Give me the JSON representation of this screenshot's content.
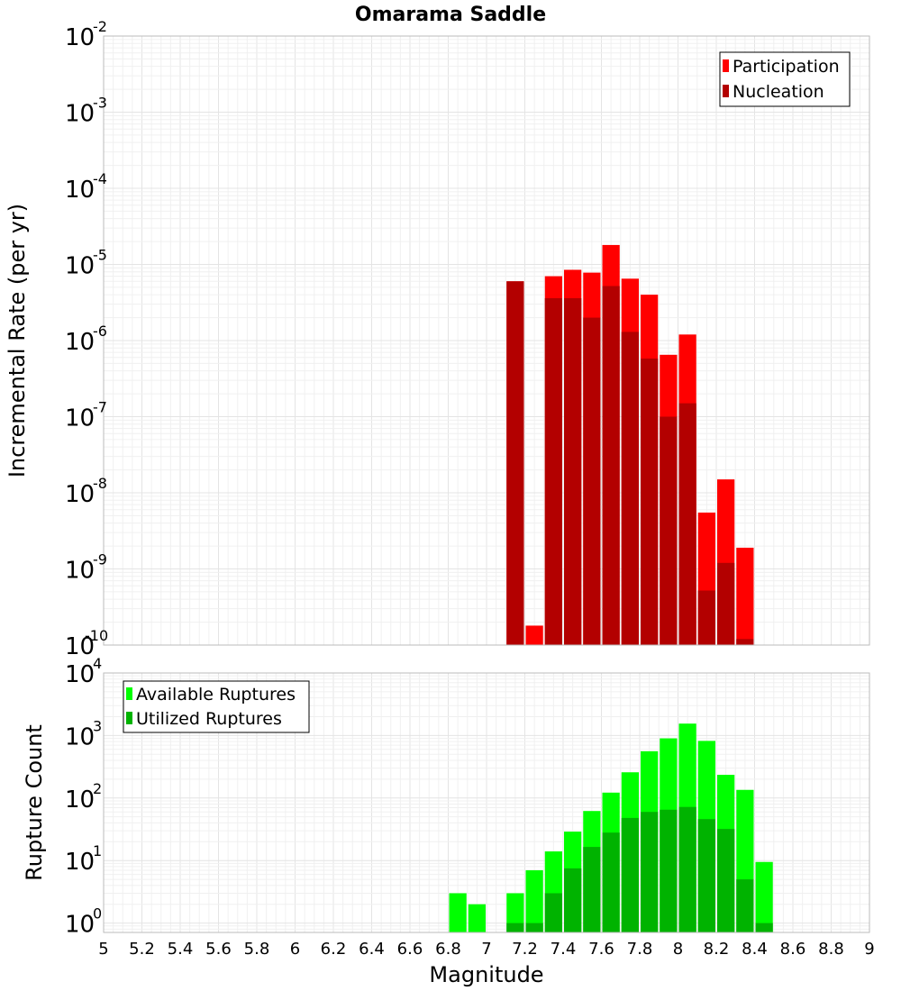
{
  "title": "Omarama Saddle",
  "colors": {
    "participation": "#ff0000",
    "nucleation": "#b30000",
    "available": "#00ff00",
    "utilized": "#00b300",
    "grid_major": "#e4e4e4",
    "grid_minor": "#f0f0f0",
    "frame": "#bbbbbb"
  },
  "chart_data": [
    {
      "type": "bar",
      "title": "Omarama Saddle",
      "xlabel": "Magnitude",
      "ylabel": "Incremental Rate (per yr)",
      "yscale": "log",
      "xlim": [
        5,
        9
      ],
      "ylim_exp": [
        -10,
        -2
      ],
      "ytick_exponents": [
        "-2",
        "-3",
        "-4",
        "-5",
        "-6",
        "-7",
        "-8",
        "-9",
        "-10"
      ],
      "bin_width": 0.1,
      "legend": [
        "Participation",
        "Nucleation"
      ],
      "series": [
        {
          "name": "Participation",
          "x": [
            7.15,
            7.25,
            7.35,
            7.45,
            7.55,
            7.65,
            7.75,
            7.85,
            7.95,
            8.05,
            8.15,
            8.25,
            8.35
          ],
          "values": [
            6e-06,
            1.8e-10,
            7e-06,
            8.5e-06,
            7.8e-06,
            1.8e-05,
            6.5e-06,
            4e-06,
            6.5e-07,
            1.2e-06,
            5.5e-09,
            1.5e-08,
            1.9e-09
          ]
        },
        {
          "name": "Nucleation",
          "x": [
            7.15,
            7.35,
            7.45,
            7.55,
            7.65,
            7.75,
            7.85,
            7.95,
            8.05,
            8.15,
            8.25,
            8.35
          ],
          "values": [
            6e-06,
            3.6e-06,
            3.6e-06,
            2e-06,
            5.2e-06,
            1.3e-06,
            5.8e-07,
            1e-07,
            1.5e-07,
            5.2e-10,
            1.2e-09,
            1.2e-10
          ]
        }
      ]
    },
    {
      "type": "bar",
      "xlabel": "Magnitude",
      "ylabel": "Rupture Count",
      "yscale": "log",
      "xlim": [
        5,
        9
      ],
      "ylim_exp": [
        -0.15,
        4
      ],
      "ytick_exponents": [
        "4",
        "3",
        "2",
        "1",
        "0"
      ],
      "xticks": [
        "5",
        "5.2",
        "5.4",
        "5.6",
        "5.8",
        "6",
        "6.2",
        "6.4",
        "6.6",
        "6.8",
        "7",
        "7.2",
        "7.4",
        "7.6",
        "7.8",
        "8",
        "8.2",
        "8.4",
        "8.6",
        "8.8",
        "9"
      ],
      "bin_width": 0.1,
      "legend": [
        "Available Ruptures",
        "Utilized Ruptures"
      ],
      "series": [
        {
          "name": "Available Ruptures",
          "x": [
            6.85,
            6.95,
            7.15,
            7.25,
            7.35,
            7.45,
            7.55,
            7.65,
            7.75,
            7.85,
            7.95,
            8.05,
            8.15,
            8.25,
            8.35,
            8.45
          ],
          "values": [
            3,
            2,
            3,
            7,
            14,
            29,
            62,
            122,
            258,
            560,
            900,
            1550,
            820,
            235,
            135,
            9.5
          ]
        },
        {
          "name": "Utilized Ruptures",
          "x": [
            7.15,
            7.25,
            7.35,
            7.45,
            7.55,
            7.65,
            7.75,
            7.85,
            7.95,
            8.05,
            8.15,
            8.25,
            8.35,
            8.45
          ],
          "values": [
            1,
            1,
            3,
            7.5,
            16.5,
            28,
            48,
            60,
            65,
            72,
            46,
            32,
            5,
            1
          ]
        }
      ]
    }
  ]
}
